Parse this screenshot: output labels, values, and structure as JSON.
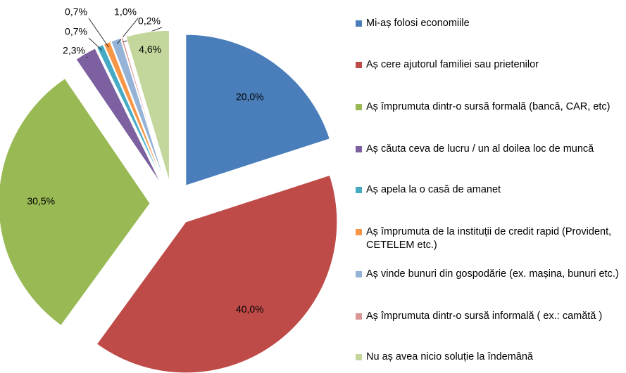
{
  "chart_data": {
    "type": "pie",
    "categories": [
      "Mi-aș folosi economiile",
      "Aș cere ajutorul familiei sau prietenilor",
      "Aș împrumuta  dintr-o  sursă formală (bancă, CAR, etc)",
      "Aș căuta ceva de lucru / un al doilea loc de muncă",
      "Aș apela la o casă de amanet",
      "Aș împrumuta de la instituții de credit rapid (Provident, CETELEM etc.)",
      "Aș vinde bunuri din gospodărie (ex. mașina, bunuri  etc.)",
      "Aș împrumuta  dintr-o sursă informală ( ex.: camătă )",
      "Nu aș avea nicio soluție la îndemână"
    ],
    "values": [
      20.0,
      40.0,
      30.5,
      2.3,
      0.7,
      0.7,
      1.0,
      0.2,
      4.6
    ],
    "value_labels": [
      "20,0%",
      "40,0%",
      "30,5%",
      "2,3%",
      "0,7%",
      "0,7%",
      "1,0%",
      "0,2%",
      "4,6%"
    ],
    "colors": [
      "#4a7ebb",
      "#be4b48",
      "#98b954",
      "#7d60a0",
      "#46aac5",
      "#f79646",
      "#95b3d7",
      "#d99694",
      "#c3d69b"
    ],
    "legend": "right"
  }
}
